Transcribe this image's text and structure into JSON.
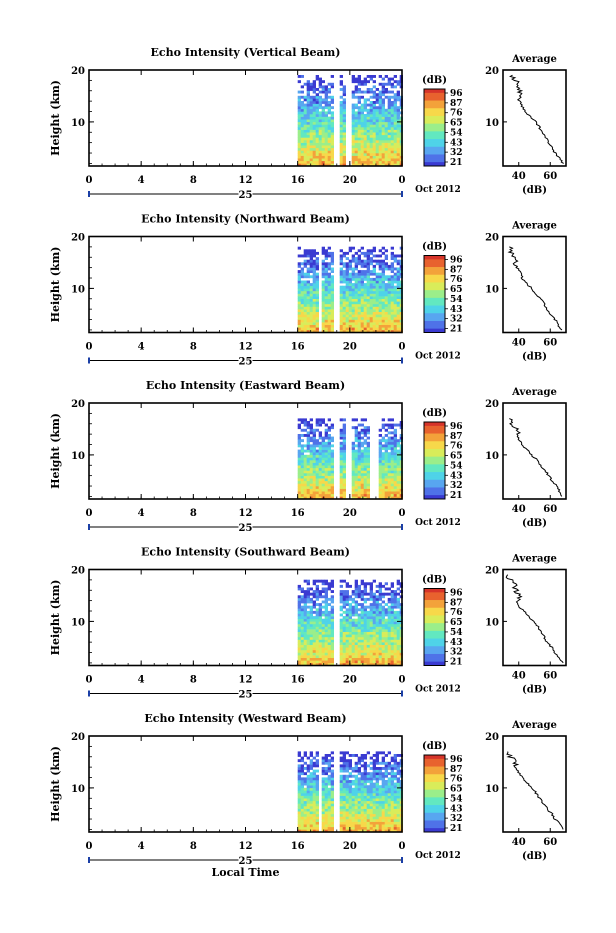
{
  "figure": {
    "xlabel": "Local Time",
    "date_label": "Oct 2012",
    "day_label": "25",
    "colorbar_unit": "(dB)",
    "colorbar_ticks": [
      "96",
      "87",
      "76",
      "65",
      "54",
      "43",
      "32",
      "21"
    ],
    "avg_title": "Average",
    "avg_xlabel": "(dB)",
    "avg_xticks": [
      "40",
      "60"
    ],
    "height_label": "Height (km)",
    "height_ticks": [
      "20",
      "10"
    ],
    "time_ticks": [
      "0",
      "4",
      "8",
      "12",
      "16",
      "20",
      "0"
    ],
    "colormap": [
      "#3a3ad1",
      "#4f72e8",
      "#58a6f0",
      "#4fd3e8",
      "#62e8c0",
      "#9bee8a",
      "#d9ec5a",
      "#f7d84a",
      "#f3a23a",
      "#e8622e",
      "#d6342a"
    ]
  },
  "chart_data": [
    {
      "type": "heatmap",
      "title": "Echo Intensity (Vertical Beam)",
      "ylabel": "Height (km)",
      "xlabel": "",
      "x_range_hours": [
        0,
        24
      ],
      "y_range_km": [
        1.5,
        20
      ],
      "data_start_hour": 16,
      "data_top_km": 19.3,
      "gaps_hours": [
        [
          18.6,
          19.0
        ],
        [
          19.6,
          20.0
        ]
      ],
      "avg_profile": {
        "xlabel": "(dB)",
        "xlim": [
          30,
          70
        ],
        "heights_km": [
          2,
          3,
          4,
          5,
          6,
          7,
          8,
          9,
          10,
          11,
          12,
          13,
          14,
          15,
          16,
          17,
          18,
          19
        ],
        "values_db": [
          68,
          66,
          63,
          61,
          59,
          57,
          55,
          53,
          51,
          47,
          44,
          42,
          41,
          39,
          41,
          40,
          38,
          36
        ]
      }
    },
    {
      "type": "heatmap",
      "title": "Echo Intensity (Northward Beam)",
      "ylabel": "Height (km)",
      "xlabel": "",
      "x_range_hours": [
        0,
        24
      ],
      "y_range_km": [
        1.5,
        20
      ],
      "data_start_hour": 16,
      "data_top_km": 18.2,
      "gaps_hours": [
        [
          17.4,
          17.8
        ],
        [
          18.6,
          19.1
        ]
      ],
      "avg_profile": {
        "xlabel": "(dB)",
        "xlim": [
          30,
          70
        ],
        "heights_km": [
          2,
          3,
          4,
          5,
          6,
          7,
          8,
          9,
          10,
          11,
          12,
          13,
          14,
          15,
          16,
          17,
          18
        ],
        "values_db": [
          67,
          65,
          63,
          60,
          58,
          56,
          54,
          51,
          48,
          45,
          42,
          41,
          39,
          38,
          36,
          35,
          34
        ]
      }
    },
    {
      "type": "heatmap",
      "title": "Echo Intensity (Eastward Beam)",
      "ylabel": "Height (km)",
      "xlabel": "",
      "x_range_hours": [
        0,
        24
      ],
      "y_range_km": [
        1.5,
        20
      ],
      "data_start_hour": 16,
      "data_top_km": 17.5,
      "gaps_hours": [
        [
          18.6,
          19.0
        ],
        [
          19.6,
          20.0
        ],
        [
          21.5,
          22.2
        ]
      ],
      "avg_profile": {
        "xlabel": "(dB)",
        "xlim": [
          30,
          70
        ],
        "heights_km": [
          2,
          3,
          4,
          5,
          6,
          7,
          8,
          9,
          10,
          11,
          12,
          13,
          14,
          15,
          16,
          17
        ],
        "values_db": [
          67,
          66,
          64,
          61,
          59,
          57,
          54,
          52,
          48,
          45,
          42,
          40,
          39,
          38,
          36,
          34
        ]
      }
    },
    {
      "type": "heatmap",
      "title": "Echo Intensity (Southward Beam)",
      "ylabel": "Height (km)",
      "xlabel": "",
      "x_range_hours": [
        0,
        24
      ],
      "y_range_km": [
        1.5,
        20
      ],
      "data_start_hour": 16,
      "data_top_km": 18.5,
      "gaps_hours": [
        [
          18.6,
          19.1
        ]
      ],
      "avg_profile": {
        "xlabel": "(dB)",
        "xlim": [
          30,
          70
        ],
        "heights_km": [
          2,
          3,
          4,
          5,
          6,
          7,
          8,
          9,
          10,
          11,
          12,
          13,
          14,
          15,
          16,
          17,
          18,
          19
        ],
        "values_db": [
          68,
          66,
          63,
          61,
          58,
          56,
          54,
          52,
          49,
          46,
          43,
          40,
          39,
          40,
          38,
          37,
          35,
          33
        ]
      }
    },
    {
      "type": "heatmap",
      "title": "Echo Intensity (Westward Beam)",
      "ylabel": "Height (km)",
      "xlabel": "Local Time",
      "x_range_hours": [
        0,
        24
      ],
      "y_range_km": [
        1.5,
        20
      ],
      "data_start_hour": 16,
      "data_top_km": 17.3,
      "gaps_hours": [
        [
          17.4,
          17.8
        ],
        [
          18.6,
          19.1
        ]
      ],
      "avg_profile": {
        "xlabel": "(dB)",
        "xlim": [
          30,
          70
        ],
        "heights_km": [
          2,
          3,
          4,
          5,
          6,
          7,
          8,
          9,
          10,
          11,
          12,
          13,
          14,
          15,
          16,
          17
        ],
        "values_db": [
          68,
          66,
          63,
          61,
          58,
          56,
          53,
          51,
          48,
          45,
          42,
          40,
          38,
          37,
          35,
          33
        ]
      }
    }
  ]
}
